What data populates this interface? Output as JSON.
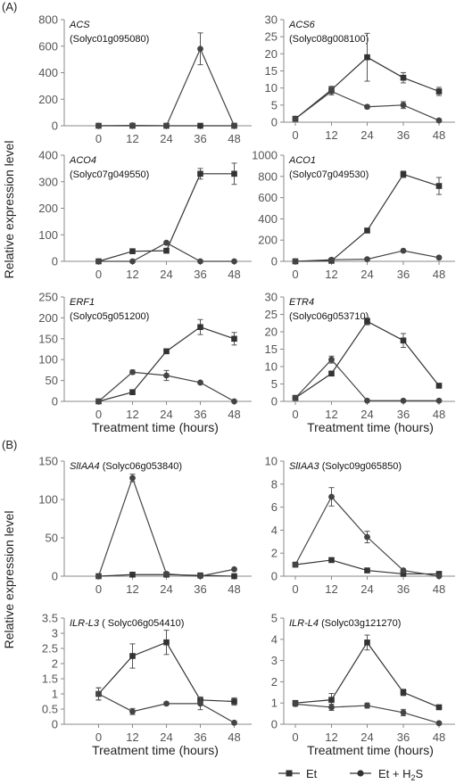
{
  "panel_labels": [
    "(A)",
    "(B)"
  ],
  "ylabel": "Relative expression level",
  "xlabel": "Treatment time (hours)",
  "legend": {
    "et": "Et",
    "eth2s_main": "Et + H",
    "eth2s_sub": "2",
    "eth2s_tail": "S"
  },
  "chart_data": [
    {
      "type": "line",
      "gene": "ACS",
      "id": "(Solyc01g095080)",
      "id_inline": false,
      "x": [
        0,
        12,
        24,
        36,
        48
      ],
      "ylim": [
        0,
        800
      ],
      "yticks": [
        0,
        200,
        400,
        600,
        800
      ],
      "series": [
        {
          "name": "Et",
          "marker": "square",
          "values": [
            0,
            0,
            0,
            0,
            0
          ],
          "err": [
            0,
            0,
            0,
            0,
            0
          ]
        },
        {
          "name": "Et + H2S",
          "marker": "circle",
          "values": [
            0,
            3,
            0,
            580,
            0
          ],
          "err": [
            0,
            2,
            0,
            120,
            0
          ]
        }
      ]
    },
    {
      "type": "line",
      "gene": "ACS6",
      "id": "(Solyc08g008100)",
      "id_inline": false,
      "x": [
        0,
        12,
        24,
        36,
        48
      ],
      "ylim": [
        0,
        30
      ],
      "yticks": [
        0,
        5,
        10,
        15,
        20,
        25,
        30
      ],
      "series": [
        {
          "name": "Et",
          "marker": "square",
          "values": [
            1,
            9.5,
            19,
            13,
            9
          ],
          "err": [
            0.2,
            1,
            7,
            1.5,
            1.2
          ]
        },
        {
          "name": "Et + H2S",
          "marker": "circle",
          "values": [
            1,
            9,
            4.5,
            5,
            0.5
          ],
          "err": [
            0.2,
            1,
            0.5,
            1,
            0.2
          ]
        }
      ]
    },
    {
      "type": "line",
      "gene": "ACO4",
      "id": "(Solyc07g049550)",
      "id_inline": false,
      "x": [
        0,
        12,
        24,
        36,
        48
      ],
      "ylim": [
        0,
        400
      ],
      "yticks": [
        0,
        100,
        200,
        300,
        400
      ],
      "series": [
        {
          "name": "Et",
          "marker": "square",
          "values": [
            0,
            38,
            40,
            330,
            330
          ],
          "err": [
            0,
            3,
            4,
            20,
            40
          ]
        },
        {
          "name": "Et + H2S",
          "marker": "circle",
          "values": [
            0,
            0,
            70,
            0,
            0
          ],
          "err": [
            0,
            0,
            5,
            0,
            0
          ]
        }
      ]
    },
    {
      "type": "line",
      "gene": "ACO1",
      "id": "(Solyc07g049530)",
      "id_inline": false,
      "x": [
        0,
        12,
        24,
        36,
        48
      ],
      "ylim": [
        0,
        1000
      ],
      "yticks": [
        0,
        200,
        400,
        600,
        800,
        1000
      ],
      "series": [
        {
          "name": "Et",
          "marker": "square",
          "values": [
            0,
            5,
            290,
            820,
            710
          ],
          "err": [
            0,
            2,
            10,
            30,
            80
          ]
        },
        {
          "name": "Et + H2S",
          "marker": "circle",
          "values": [
            0,
            15,
            20,
            100,
            35
          ],
          "err": [
            0,
            2,
            3,
            5,
            3
          ]
        }
      ]
    },
    {
      "type": "line",
      "gene": "ERF1",
      "id": "(Solyc05g051200)",
      "id_inline": false,
      "x": [
        0,
        12,
        24,
        36,
        48
      ],
      "ylim": [
        0,
        250
      ],
      "yticks": [
        0,
        50,
        100,
        150,
        200,
        250
      ],
      "series": [
        {
          "name": "Et",
          "marker": "square",
          "values": [
            0,
            22,
            120,
            178,
            150
          ],
          "err": [
            0,
            2,
            5,
            18,
            15
          ]
        },
        {
          "name": "Et + H2S",
          "marker": "circle",
          "values": [
            0,
            70,
            62,
            45,
            0
          ],
          "err": [
            0,
            5,
            12,
            3,
            0
          ]
        }
      ]
    },
    {
      "type": "line",
      "gene": "ETR4",
      "id": "(Solyc06g053710)",
      "id_inline": false,
      "x": [
        0,
        12,
        24,
        36,
        48
      ],
      "ylim": [
        0,
        30
      ],
      "yticks": [
        0,
        5,
        10,
        15,
        20,
        25,
        30
      ],
      "series": [
        {
          "name": "Et",
          "marker": "square",
          "values": [
            1,
            8,
            23,
            17.5,
            4.5
          ],
          "err": [
            0.2,
            0.5,
            1,
            2,
            0.3
          ]
        },
        {
          "name": "Et + H2S",
          "marker": "circle",
          "values": [
            1,
            12,
            0.2,
            0.2,
            0.2
          ],
          "err": [
            0.2,
            1,
            0,
            0,
            0
          ]
        }
      ]
    },
    {
      "type": "line",
      "gene": "SlIAA4",
      "id": "(Solyc06g053840)",
      "id_inline": true,
      "x": [
        0,
        12,
        24,
        36,
        48
      ],
      "ylim": [
        0,
        150
      ],
      "yticks": [
        0,
        50,
        100,
        150
      ],
      "series": [
        {
          "name": "Et",
          "marker": "square",
          "values": [
            0,
            2,
            2,
            1,
            0
          ],
          "err": [
            0,
            0.5,
            0.5,
            0.3,
            0
          ]
        },
        {
          "name": "Et + H2S",
          "marker": "circle",
          "values": [
            0,
            128,
            3,
            0,
            9
          ],
          "err": [
            0,
            5,
            0.5,
            0,
            0.5
          ]
        }
      ]
    },
    {
      "type": "line",
      "gene": "SlIAA3",
      "id": "(Solyc09g065850)",
      "id_inline": true,
      "x": [
        0,
        12,
        24,
        36,
        48
      ],
      "ylim": [
        0,
        10
      ],
      "yticks": [
        0,
        2,
        4,
        6,
        8,
        10
      ],
      "series": [
        {
          "name": "Et",
          "marker": "square",
          "values": [
            1,
            1.4,
            0.5,
            0.2,
            0.2
          ],
          "err": [
            0.05,
            0.1,
            0.05,
            0.05,
            0.05
          ]
        },
        {
          "name": "Et + H2S",
          "marker": "circle",
          "values": [
            1,
            6.9,
            3.4,
            0.5,
            0
          ],
          "err": [
            0.05,
            0.8,
            0.5,
            0.1,
            0
          ]
        }
      ]
    },
    {
      "type": "line",
      "gene": "ILR-L3",
      "id": "( Solyc06g054410)",
      "id_inline": true,
      "x": [
        0,
        12,
        24,
        36,
        48
      ],
      "ylim": [
        0,
        3.5
      ],
      "yticks": [
        0,
        0.5,
        1,
        1.5,
        2,
        2.5,
        3,
        3.5
      ],
      "yticklabels": [
        "0",
        "0.5",
        "1",
        "1.5",
        "2",
        "2.5",
        "3",
        "3.5"
      ],
      "series": [
        {
          "name": "Et",
          "marker": "square",
          "values": [
            1,
            2.25,
            2.7,
            0.8,
            0.75
          ],
          "err": [
            0.2,
            0.4,
            0.4,
            0.1,
            0.12
          ]
        },
        {
          "name": "Et + H2S",
          "marker": "circle",
          "values": [
            1,
            0.42,
            0.68,
            0.68,
            0.05
          ],
          "err": [
            0.2,
            0.1,
            0.05,
            0.2,
            0.05
          ]
        }
      ]
    },
    {
      "type": "line",
      "gene": "ILR-L4",
      "id": "(Solyc03g121270)",
      "id_inline": true,
      "x": [
        0,
        12,
        24,
        36,
        48
      ],
      "ylim": [
        0,
        5
      ],
      "yticks": [
        0,
        1,
        2,
        3,
        4,
        5
      ],
      "series": [
        {
          "name": "Et",
          "marker": "square",
          "values": [
            1,
            1.15,
            3.85,
            1.5,
            0.8
          ],
          "err": [
            0.1,
            0.3,
            0.35,
            0.15,
            0.05
          ]
        },
        {
          "name": "Et + H2S",
          "marker": "circle",
          "values": [
            0.95,
            0.8,
            0.88,
            0.55,
            0.05
          ],
          "err": [
            0.1,
            0.15,
            0.12,
            0.15,
            0.02
          ]
        }
      ]
    }
  ]
}
